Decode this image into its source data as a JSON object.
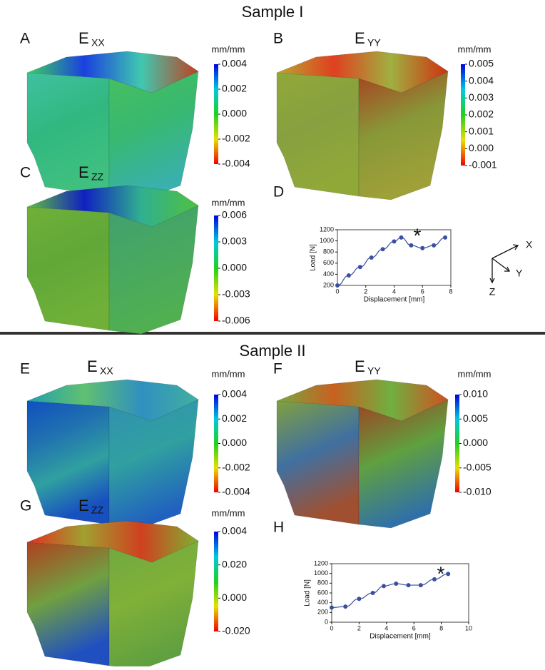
{
  "sections": [
    {
      "title": "Sample I"
    },
    {
      "title": "Sample II"
    }
  ],
  "panels": [
    {
      "letter": "A",
      "component": "E",
      "subscript": "XX",
      "unit": "mm/mm",
      "colorbar": [
        "0.004",
        "0.002",
        "0.000",
        "-0.002",
        "-0.004"
      ]
    },
    {
      "letter": "B",
      "component": "E",
      "subscript": "YY",
      "unit": "mm/mm",
      "colorbar": [
        "0.005",
        "0.004",
        "0.003",
        "0.002",
        "0.001",
        "0.000",
        "-0.001"
      ]
    },
    {
      "letter": "C",
      "component": "E",
      "subscript": "ZZ",
      "unit": "mm/mm",
      "colorbar": [
        "0.006",
        "0.003",
        "0.000",
        "-0.003",
        "-0.006"
      ]
    },
    {
      "letter": "E",
      "component": "E",
      "subscript": "XX",
      "unit": "mm/mm",
      "colorbar": [
        "0.004",
        "0.002",
        "0.000",
        "-0.002",
        "-0.004"
      ]
    },
    {
      "letter": "F",
      "component": "E",
      "subscript": "YY",
      "unit": "mm/mm",
      "colorbar": [
        "0.010",
        "0.005",
        "0.000",
        "-0.005",
        "-0.010"
      ]
    },
    {
      "letter": "G",
      "component": "E",
      "subscript": "ZZ",
      "unit": "mm/mm",
      "colorbar": [
        "0.004",
        "0.020",
        "0.000",
        "-0.020"
      ]
    }
  ],
  "plot_letters": [
    "D",
    "H"
  ],
  "axes_icon": {
    "x": "X",
    "y": "Y",
    "z": "Z"
  },
  "chart_data": [
    {
      "type": "line",
      "x_label": "Displacement [mm]",
      "y_label": "Load [N]",
      "annotation": "*",
      "x": [
        0,
        0.8,
        1.6,
        2.4,
        3.2,
        4.0,
        4.5,
        5.2,
        6.0,
        6.8,
        7.6
      ],
      "series": [
        {
          "color": "#3b4f9e",
          "values": [
            200,
            380,
            530,
            700,
            850,
            990,
            1060,
            920,
            870,
            920,
            1060
          ]
        }
      ],
      "xlim": [
        0,
        8
      ],
      "xticks": [
        0,
        2,
        4,
        6,
        8
      ],
      "ylim": [
        200,
        1200
      ],
      "yticks": [
        200,
        400,
        600,
        800,
        1000,
        1200
      ]
    },
    {
      "type": "line",
      "x_label": "Displacement [mm]",
      "y_label": "Load [N]",
      "annotation": "*",
      "x": [
        0,
        1,
        2,
        3,
        3.8,
        4.7,
        5.6,
        6.5,
        7.5,
        8.5
      ],
      "series": [
        {
          "color": "#3b4f9e",
          "values": [
            300,
            320,
            480,
            600,
            740,
            790,
            760,
            760,
            880,
            990
          ]
        }
      ],
      "xlim": [
        0,
        10
      ],
      "xticks": [
        0,
        2,
        4,
        6,
        8,
        10
      ],
      "ylim": [
        0,
        1200
      ],
      "yticks": [
        0,
        200,
        400,
        600,
        800,
        1000,
        1200
      ]
    }
  ]
}
